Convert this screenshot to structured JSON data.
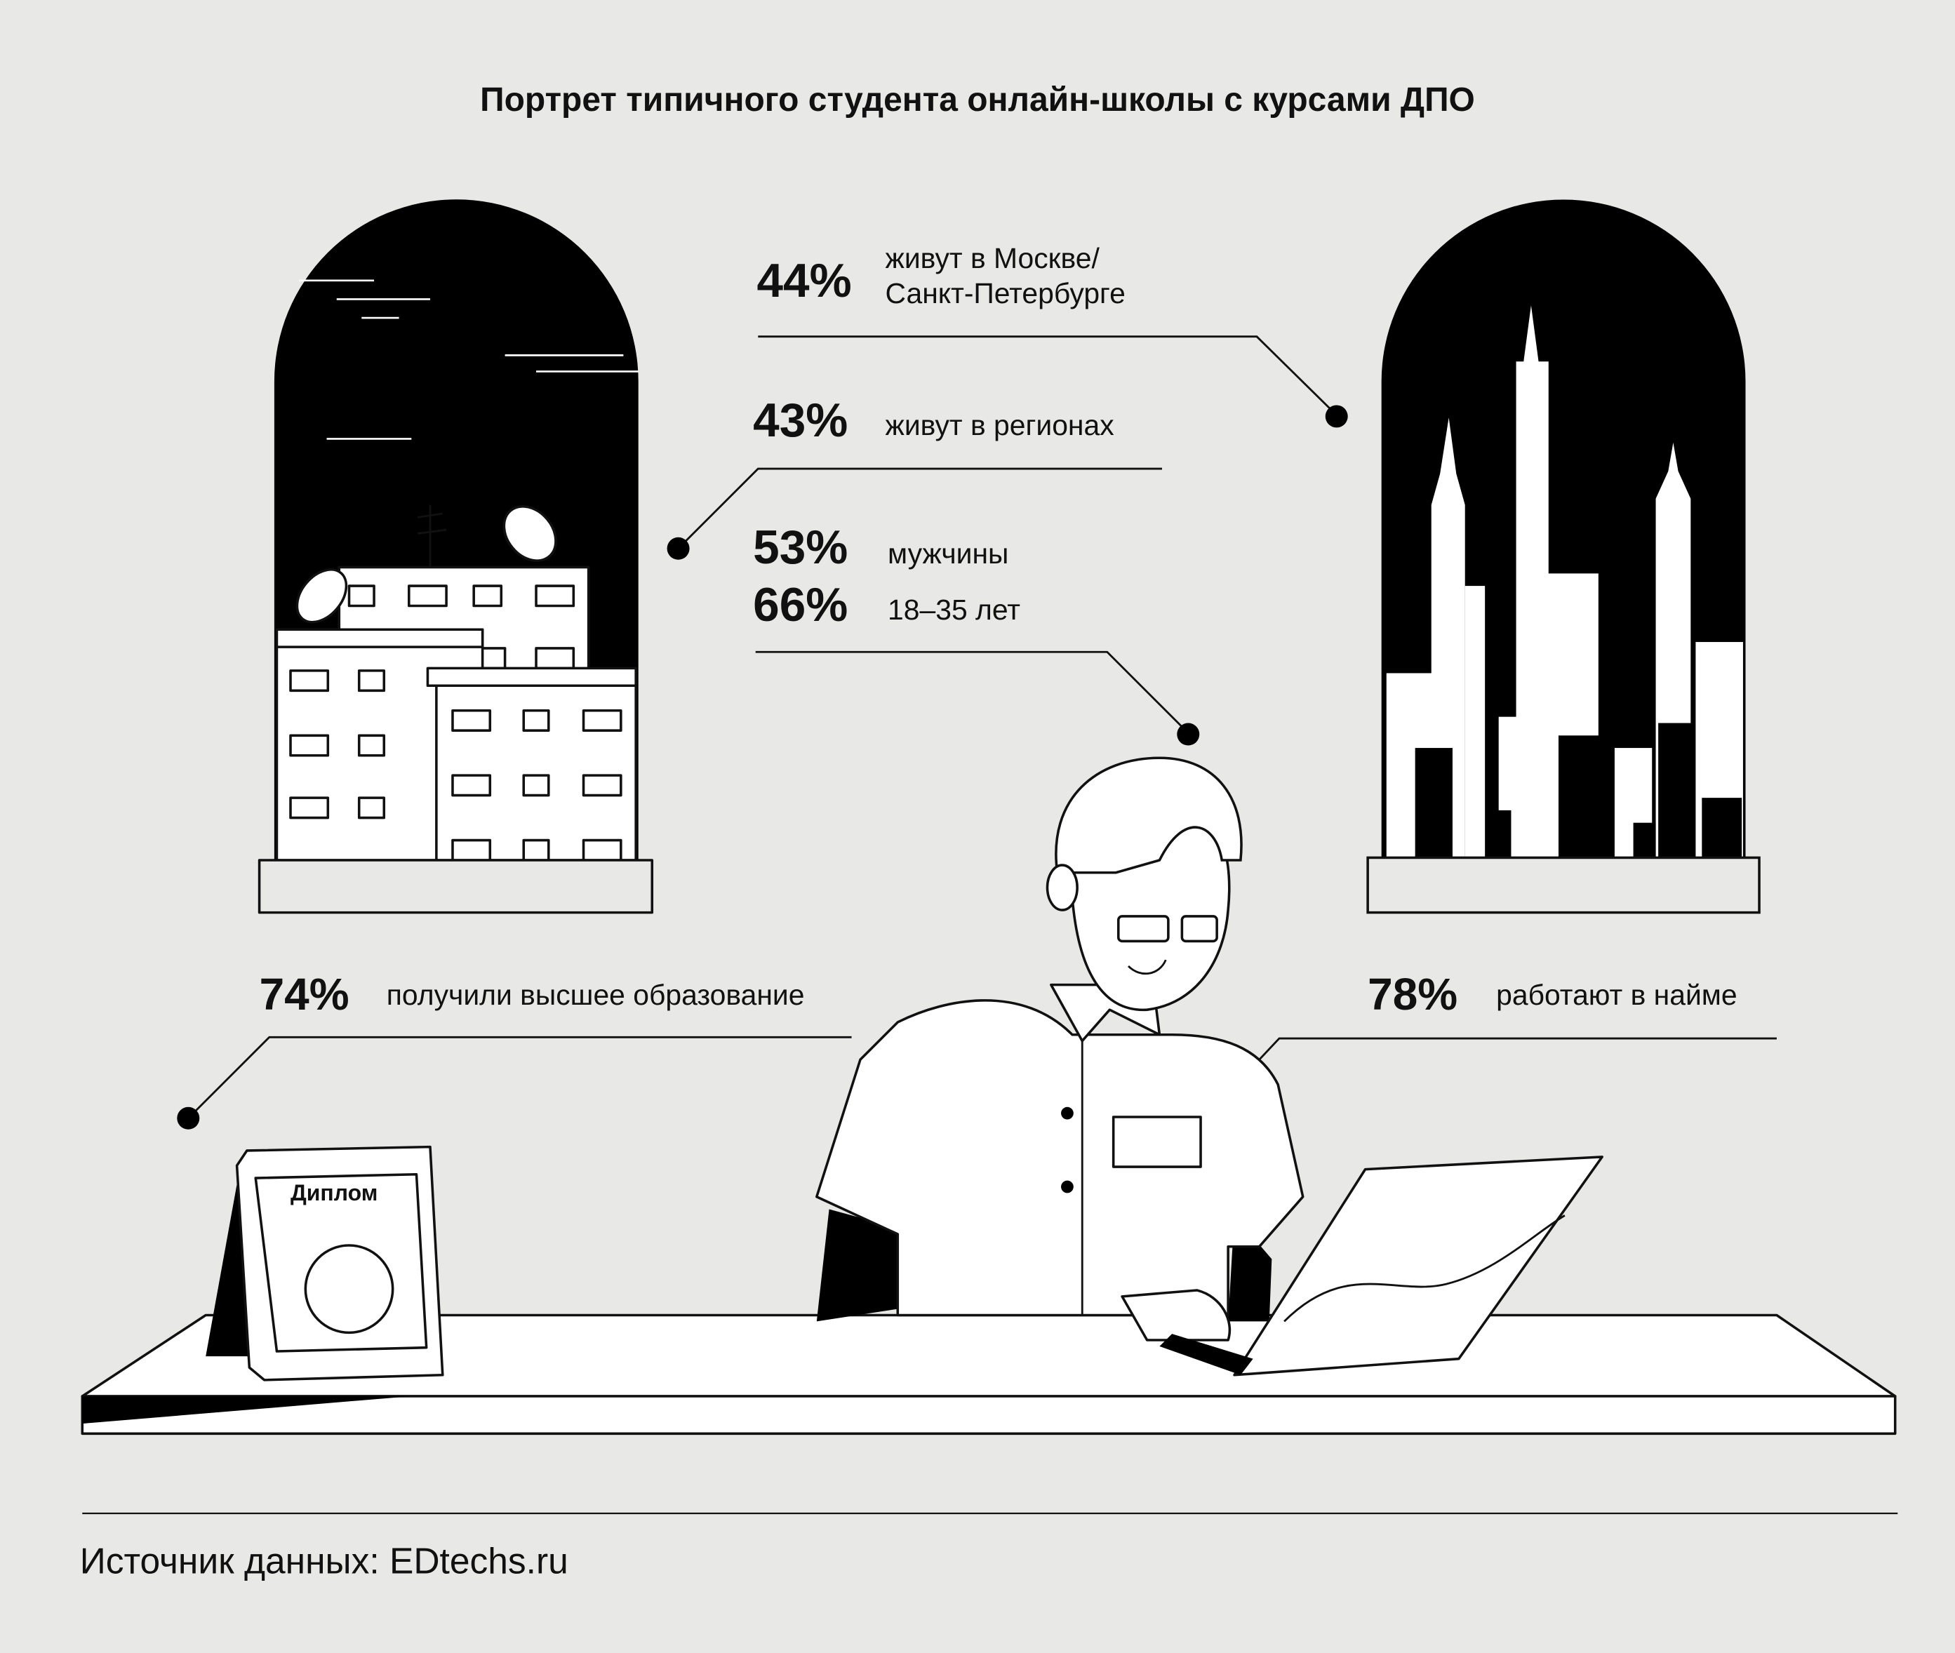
{
  "title": "Портрет типичного студента онлайн-школы с курсами ДПО",
  "stats": [
    {
      "value": "44%",
      "label_line1": "живут в Москве/",
      "label_line2": "Санкт-Петербурге"
    },
    {
      "value": "43%",
      "label": "живут в регионах"
    },
    {
      "value": "53%",
      "label": "мужчины"
    },
    {
      "value": "66%",
      "label": "18–35 лет"
    },
    {
      "value": "74%",
      "label": "получили высшее образование"
    },
    {
      "value": "78%",
      "label": "работают в найме"
    }
  ],
  "diploma_label": "Диплом",
  "source": "Источник данных: EDtechs.ru",
  "colors": {
    "background": "#e8e8e6",
    "ink": "#111111",
    "white": "#ffffff"
  }
}
